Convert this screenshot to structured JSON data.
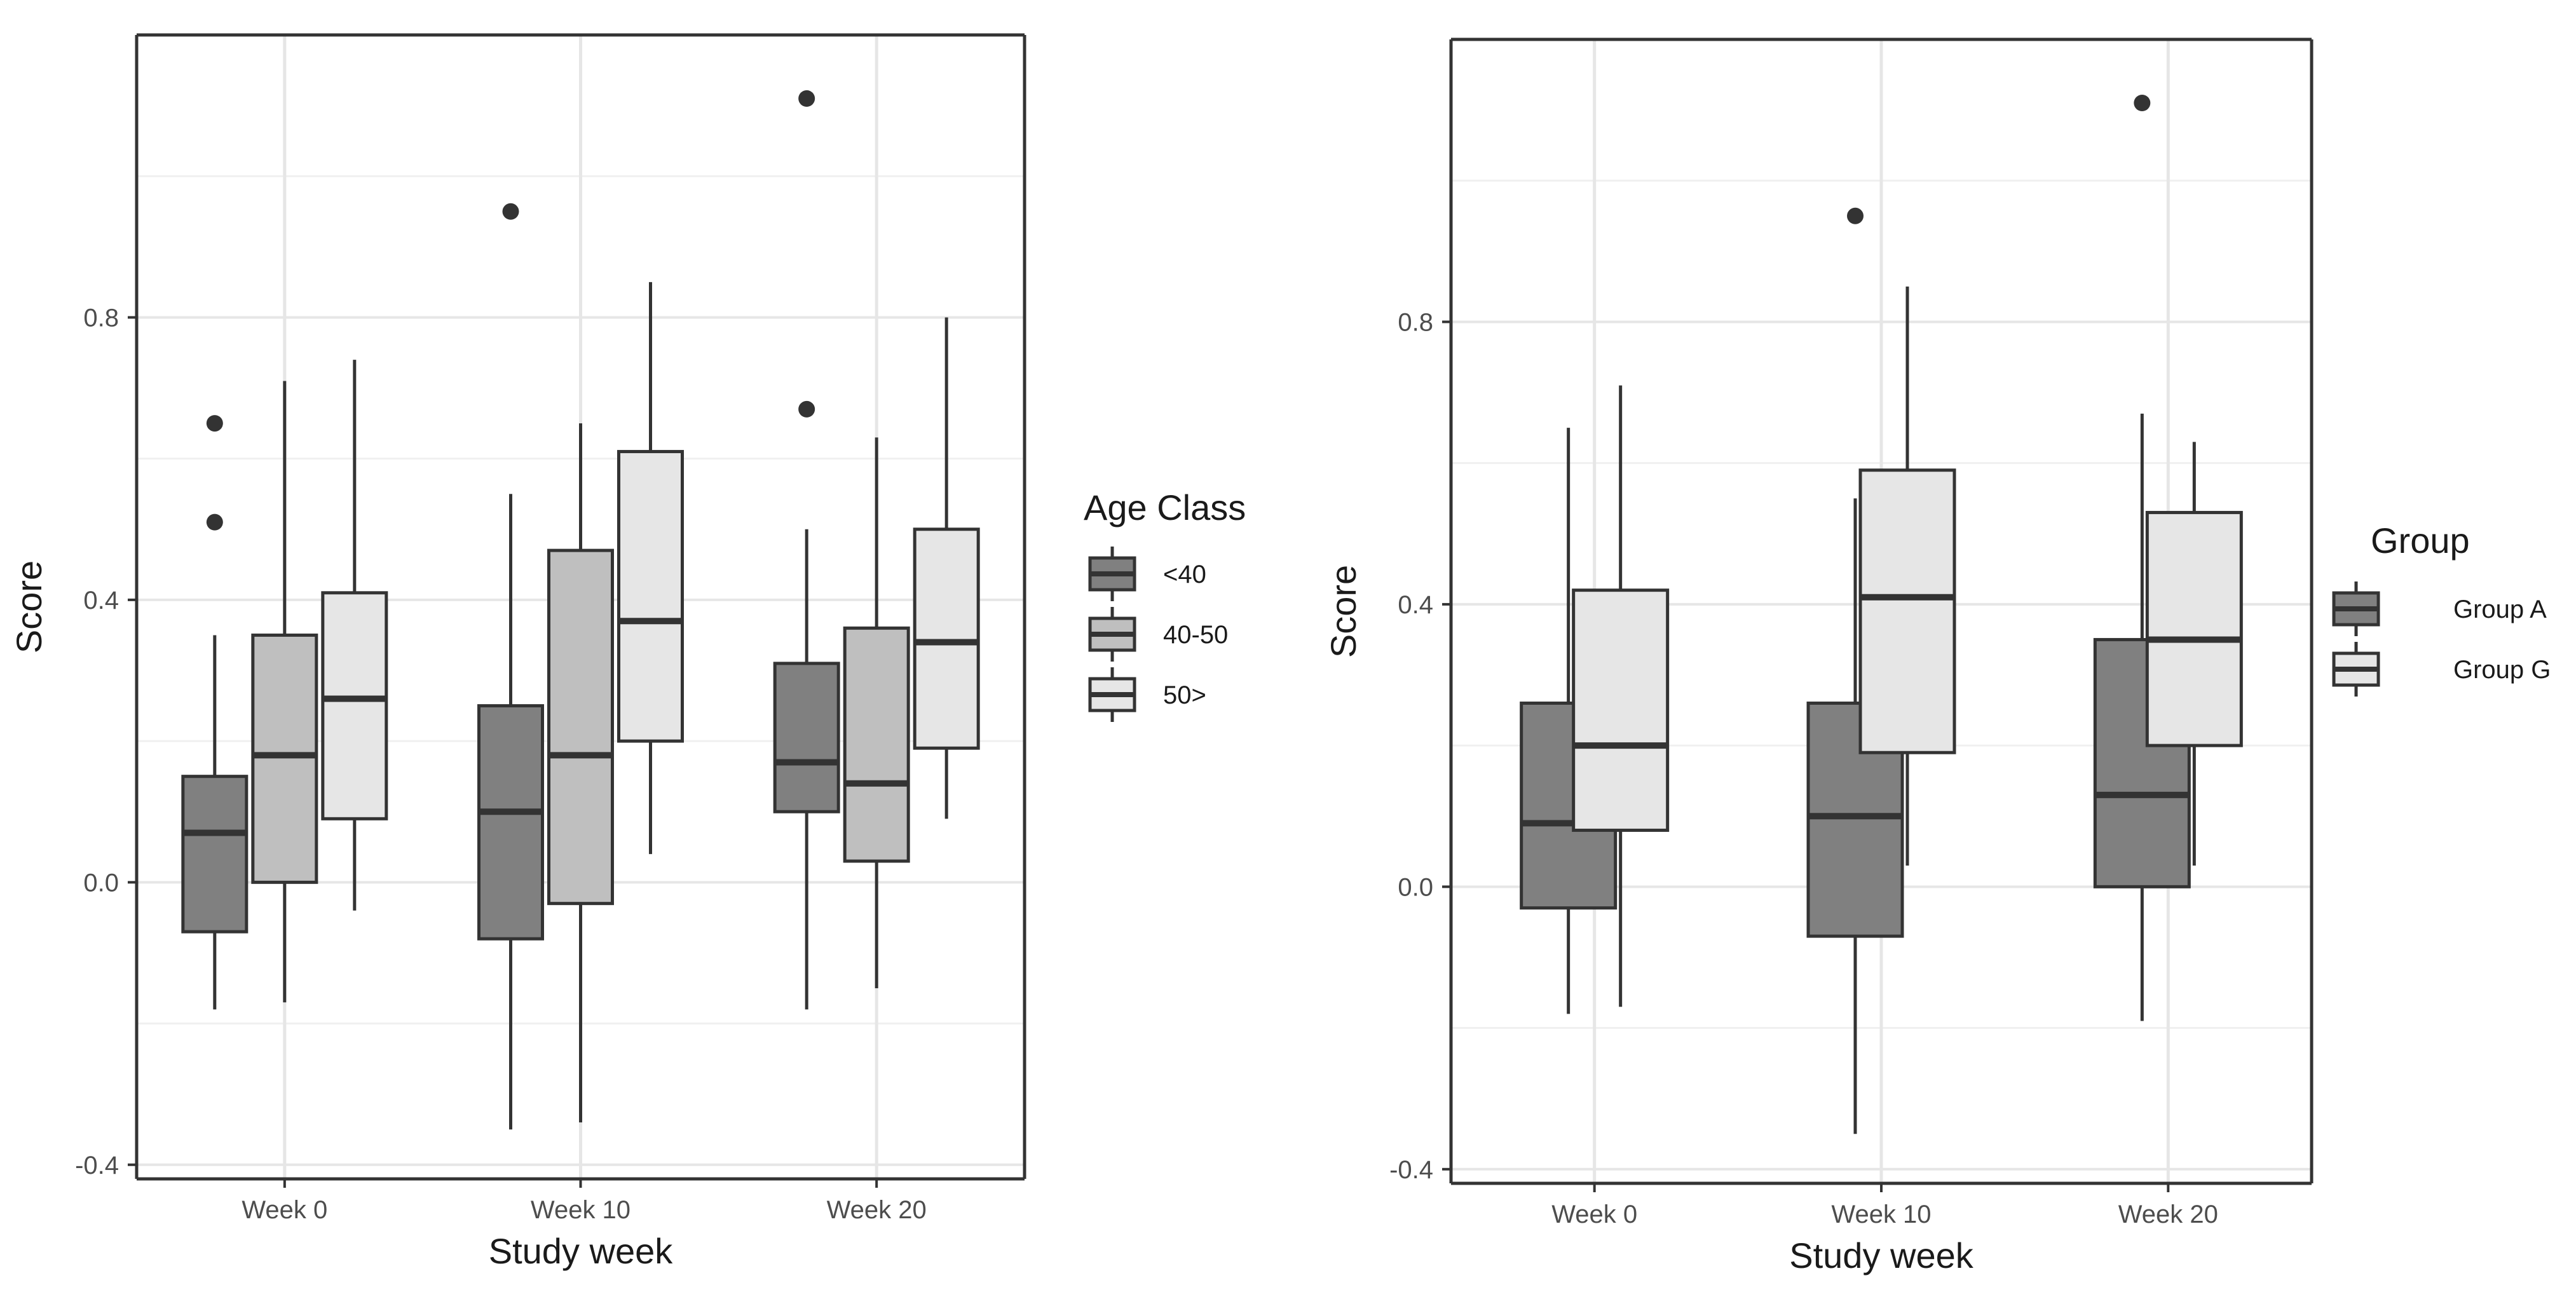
{
  "chart_data": [
    {
      "type": "boxplot",
      "xlabel": "Study week",
      "ylabel": "Score",
      "ylim": [
        -0.42,
        1.2
      ],
      "yticks": [
        -0.4,
        0.0,
        0.4,
        0.8
      ],
      "ytick_labels": [
        "-0.4",
        "0.0",
        "0.4",
        "0.8"
      ],
      "categories": [
        "Week 0",
        "Week 10",
        "Week 20"
      ],
      "legend": {
        "title": "Age Class",
        "position": "right",
        "entries": [
          "<40",
          "40-50",
          "50>"
        ]
      },
      "series": [
        {
          "name": "<40",
          "color": "#808080",
          "boxes": [
            {
              "category": "Week 0",
              "min": -0.18,
              "q1": -0.07,
              "median": 0.07,
              "q3": 0.15,
              "max": 0.35,
              "outliers": [
                0.51,
                0.65
              ]
            },
            {
              "category": "Week 10",
              "min": -0.35,
              "q1": -0.08,
              "median": 0.1,
              "q3": 0.25,
              "max": 0.55,
              "outliers": [
                0.95
              ]
            },
            {
              "category": "Week 20",
              "min": -0.18,
              "q1": 0.1,
              "median": 0.17,
              "q3": 0.31,
              "max": 0.5,
              "outliers": [
                0.67,
                1.11
              ]
            }
          ]
        },
        {
          "name": "40-50",
          "color": "#bfbfbf",
          "boxes": [
            {
              "category": "Week 0",
              "min": -0.17,
              "q1": 0.0,
              "median": 0.18,
              "q3": 0.35,
              "max": 0.71,
              "outliers": []
            },
            {
              "category": "Week 10",
              "min": -0.34,
              "q1": -0.03,
              "median": 0.18,
              "q3": 0.47,
              "max": 0.65,
              "outliers": []
            },
            {
              "category": "Week 20",
              "min": -0.15,
              "q1": 0.03,
              "median": 0.14,
              "q3": 0.36,
              "max": 0.63,
              "outliers": []
            }
          ]
        },
        {
          "name": "50>",
          "color": "#e6e6e6",
          "boxes": [
            {
              "category": "Week 0",
              "min": -0.04,
              "q1": 0.09,
              "median": 0.26,
              "q3": 0.41,
              "max": 0.74,
              "outliers": []
            },
            {
              "category": "Week 10",
              "min": 0.04,
              "q1": 0.2,
              "median": 0.37,
              "q3": 0.61,
              "max": 0.85,
              "outliers": []
            },
            {
              "category": "Week 20",
              "min": 0.09,
              "q1": 0.19,
              "median": 0.34,
              "q3": 0.5,
              "max": 0.8,
              "outliers": []
            }
          ]
        }
      ]
    },
    {
      "type": "boxplot",
      "xlabel": "Study week",
      "ylabel": "Score",
      "ylim": [
        -0.42,
        1.2
      ],
      "yticks": [
        -0.4,
        0.0,
        0.4,
        0.8
      ],
      "ytick_labels": [
        "-0.4",
        "0.0",
        "0.4",
        "0.8"
      ],
      "categories": [
        "Week 0",
        "Week 10",
        "Week 20"
      ],
      "legend": {
        "title": "Group",
        "position": "right",
        "entries": [
          "Group A",
          "Group G"
        ]
      },
      "series": [
        {
          "name": "Group A",
          "color": "#808080",
          "boxes": [
            {
              "category": "Week 0",
              "min": -0.18,
              "q1": -0.03,
              "median": 0.09,
              "q3": 0.26,
              "max": 0.65,
              "outliers": []
            },
            {
              "category": "Week 10",
              "min": -0.35,
              "q1": -0.07,
              "median": 0.1,
              "q3": 0.26,
              "max": 0.55,
              "outliers": [
                0.95
              ]
            },
            {
              "category": "Week 20",
              "min": -0.19,
              "q1": 0.0,
              "median": 0.13,
              "q3": 0.35,
              "max": 0.67,
              "outliers": [
                1.11
              ]
            }
          ]
        },
        {
          "name": "Group G",
          "color": "#e6e6e6",
          "boxes": [
            {
              "category": "Week 0",
              "min": -0.17,
              "q1": 0.08,
              "median": 0.2,
              "q3": 0.42,
              "max": 0.71,
              "outliers": []
            },
            {
              "category": "Week 10",
              "min": 0.03,
              "q1": 0.19,
              "median": 0.41,
              "q3": 0.59,
              "max": 0.85,
              "outliers": []
            },
            {
              "category": "Week 20",
              "min": 0.03,
              "q1": 0.2,
              "median": 0.35,
              "q3": 0.53,
              "max": 0.63,
              "outliers": []
            }
          ]
        }
      ]
    }
  ]
}
